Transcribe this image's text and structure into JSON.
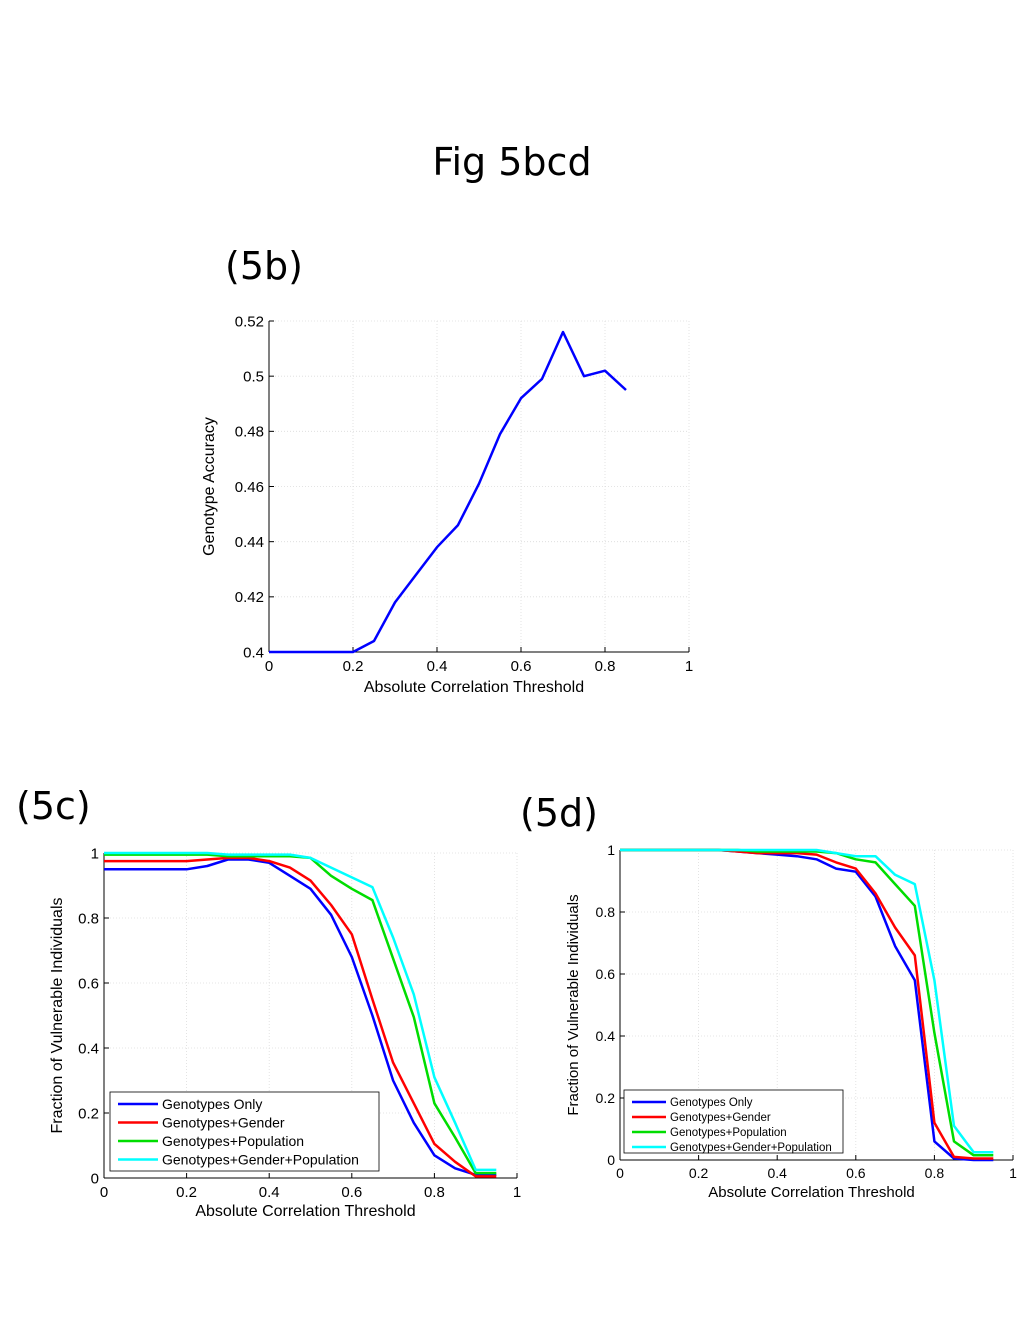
{
  "title": "Fig 5bcd",
  "panels": [
    "(5b)",
    "(5c)",
    "(5d)"
  ],
  "chart_data": [
    {
      "id": "5b",
      "type": "line",
      "xlabel": "Absolute Correlation Threshold",
      "ylabel": "Genotype Accuracy",
      "xlim": [
        0,
        1
      ],
      "ylim": [
        0.4,
        0.52
      ],
      "xticks": [
        "0",
        "0.2",
        "0.4",
        "0.6",
        "0.8",
        "1"
      ],
      "xtick_values": [
        0,
        0.2,
        0.4,
        0.6,
        0.8,
        1
      ],
      "yticks": [
        "0.4",
        "0.42",
        "0.44",
        "0.46",
        "0.48",
        "0.5",
        "0.52"
      ],
      "ytick_values": [
        0.4,
        0.42,
        0.44,
        0.46,
        0.48,
        0.5,
        0.52
      ],
      "grid": true,
      "series": [
        {
          "name": "Genotype Accuracy",
          "color": "#0000ff",
          "x": [
            0,
            0.05,
            0.1,
            0.15,
            0.2,
            0.25,
            0.3,
            0.35,
            0.4,
            0.45,
            0.5,
            0.55,
            0.6,
            0.65,
            0.7,
            0.75,
            0.8,
            0.85
          ],
          "y": [
            0.4,
            0.4,
            0.4,
            0.4,
            0.4,
            0.404,
            0.418,
            0.428,
            0.438,
            0.446,
            0.461,
            0.479,
            0.492,
            0.499,
            0.516,
            0.5,
            0.502,
            0.495
          ]
        }
      ]
    },
    {
      "id": "5c",
      "type": "line",
      "xlabel": "Absolute Correlation Threshold",
      "ylabel": "Fraction of Vulnerable Individuals",
      "xlim": [
        0,
        1
      ],
      "ylim": [
        0,
        1
      ],
      "xticks": [
        "0",
        "0.2",
        "0.4",
        "0.6",
        "0.8",
        "1"
      ],
      "xtick_values": [
        0,
        0.2,
        0.4,
        0.6,
        0.8,
        1
      ],
      "yticks": [
        "0",
        "0.2",
        "0.4",
        "0.6",
        "0.8",
        "1"
      ],
      "ytick_values": [
        0,
        0.2,
        0.4,
        0.6,
        0.8,
        1
      ],
      "grid": true,
      "legend_position": "bottom-left",
      "x": [
        0,
        0.05,
        0.1,
        0.15,
        0.2,
        0.25,
        0.3,
        0.35,
        0.4,
        0.45,
        0.5,
        0.55,
        0.6,
        0.65,
        0.7,
        0.75,
        0.8,
        0.85,
        0.9,
        0.95
      ],
      "series": [
        {
          "name": "Genotypes Only",
          "color": "#0000ff",
          "values": [
            0.95,
            0.95,
            0.95,
            0.95,
            0.95,
            0.96,
            0.98,
            0.98,
            0.97,
            0.93,
            0.89,
            0.81,
            0.68,
            0.5,
            0.3,
            0.17,
            0.07,
            0.03,
            0.01,
            0.01
          ]
        },
        {
          "name": "Genotypes+Gender",
          "color": "#ff0000",
          "values": [
            0.975,
            0.975,
            0.975,
            0.975,
            0.975,
            0.98,
            0.985,
            0.985,
            0.975,
            0.955,
            0.915,
            0.84,
            0.75,
            0.55,
            0.355,
            0.23,
            0.105,
            0.05,
            0.005,
            0.005
          ]
        },
        {
          "name": "Genotypes+Population",
          "color": "#00dd00",
          "values": [
            0.995,
            0.995,
            0.995,
            0.995,
            0.995,
            0.995,
            0.99,
            0.99,
            0.99,
            0.99,
            0.985,
            0.93,
            0.89,
            0.855,
            0.675,
            0.495,
            0.23,
            0.125,
            0.015,
            0.015
          ]
        },
        {
          "name": "Genotypes+Gender+Population",
          "color": "#00ffff",
          "values": [
            1.0,
            1.0,
            1.0,
            1.0,
            1.0,
            1.0,
            0.995,
            0.995,
            0.995,
            0.995,
            0.985,
            0.955,
            0.925,
            0.895,
            0.74,
            0.565,
            0.31,
            0.17,
            0.025,
            0.025
          ]
        }
      ]
    },
    {
      "id": "5d",
      "type": "line",
      "xlabel": "Absolute Correlation Threshold",
      "ylabel": "Fraction of Vulnerable Individuals",
      "xlim": [
        0,
        1
      ],
      "ylim": [
        0,
        1
      ],
      "xticks": [
        "0",
        "0.2",
        "0.4",
        "0.6",
        "0.8",
        "1"
      ],
      "xtick_values": [
        0,
        0.2,
        0.4,
        0.6,
        0.8,
        1
      ],
      "yticks": [
        "0",
        "0.2",
        "0.4",
        "0.6",
        "0.8",
        "1"
      ],
      "ytick_values": [
        0,
        0.2,
        0.4,
        0.6,
        0.8,
        1
      ],
      "grid": true,
      "legend_position": "bottom-left",
      "x": [
        0,
        0.05,
        0.1,
        0.15,
        0.2,
        0.25,
        0.3,
        0.35,
        0.4,
        0.45,
        0.5,
        0.55,
        0.6,
        0.65,
        0.7,
        0.75,
        0.8,
        0.85,
        0.9,
        0.95
      ],
      "series": [
        {
          "name": "Genotypes Only",
          "color": "#0000ff",
          "values": [
            1.0,
            1.0,
            1.0,
            1.0,
            1.0,
            1.0,
            0.995,
            0.99,
            0.985,
            0.98,
            0.97,
            0.94,
            0.93,
            0.85,
            0.69,
            0.58,
            0.06,
            0.005,
            0.0,
            0.0
          ]
        },
        {
          "name": "Genotypes+Gender",
          "color": "#ff0000",
          "values": [
            1.0,
            1.0,
            1.0,
            1.0,
            1.0,
            1.0,
            0.995,
            0.99,
            0.99,
            0.99,
            0.985,
            0.96,
            0.94,
            0.86,
            0.75,
            0.66,
            0.12,
            0.01,
            0.005,
            0.005
          ]
        },
        {
          "name": "Genotypes+Population",
          "color": "#00dd00",
          "values": [
            1.0,
            1.0,
            1.0,
            1.0,
            1.0,
            1.0,
            1.0,
            0.995,
            0.995,
            0.995,
            0.995,
            0.99,
            0.97,
            0.96,
            0.89,
            0.82,
            0.41,
            0.06,
            0.015,
            0.015
          ]
        },
        {
          "name": "Genotypes+Gender+Population",
          "color": "#00ffff",
          "values": [
            1.0,
            1.0,
            1.0,
            1.0,
            1.0,
            1.0,
            1.0,
            1.0,
            1.0,
            1.0,
            1.0,
            0.99,
            0.98,
            0.98,
            0.92,
            0.89,
            0.58,
            0.11,
            0.025,
            0.025
          ]
        }
      ]
    }
  ]
}
